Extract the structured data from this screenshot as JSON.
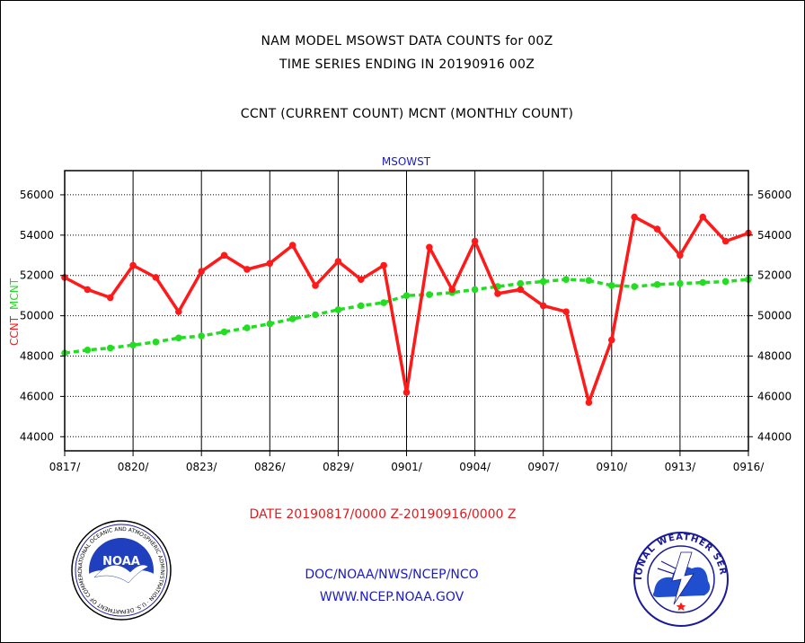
{
  "header": {
    "line1": "NAM MODEL MSOWST DATA COUNTS for 00Z",
    "line2": "TIME SERIES ENDING IN 20190916 00Z",
    "line3": "CCNT (CURRENT COUNT) MCNT (MONTHLY COUNT)"
  },
  "footer": {
    "date_range": "DATE 20190817/0000 Z-20190916/0000 Z",
    "org_path": "DOC/NOAA/NWS/NCEP/NCO",
    "website": "WWW.NCEP.NOAA.GOV"
  },
  "logos": {
    "noaa_text": "NOAA",
    "noaa_ring": "NATIONAL OCEANIC AND ATMOSPHERIC ADMINISTRATION · U.S. DEPARTMENT OF COMMERCE",
    "nws_ring": "NATIONAL WEATHER SERVICE"
  },
  "colors": {
    "ccnt": "#ff1a1a",
    "mcnt": "#22dd22",
    "title_blue": "#1a1acc",
    "footer_red": "#e31a1c"
  },
  "chart_data": {
    "type": "line",
    "title": "MSOWST",
    "ylabel_parts": [
      {
        "text": "CCNT",
        "color": "#ff1a1a"
      },
      {
        "text": "MCNT",
        "color": "#22dd22"
      }
    ],
    "xlabel": "",
    "ylim": [
      43300,
      57200
    ],
    "yticks": [
      44000,
      46000,
      48000,
      50000,
      52000,
      54000,
      56000
    ],
    "ytick_labels": [
      "44000",
      "46000",
      "48000",
      "50000",
      "52000",
      "54000",
      "56000"
    ],
    "x": [
      "0817",
      "0818",
      "0819",
      "0820",
      "0821",
      "0822",
      "0823",
      "0824",
      "0825",
      "0826",
      "0827",
      "0828",
      "0829",
      "0830",
      "0831",
      "0901",
      "0902",
      "0903",
      "0904",
      "0905",
      "0906",
      "0907",
      "0908",
      "0909",
      "0910",
      "0911",
      "0912",
      "0913",
      "0914",
      "0915",
      "0916"
    ],
    "xtick_labels": [
      "0817/",
      "0820/",
      "0823/",
      "0826/",
      "0829/",
      "0901/",
      "0904/",
      "0907/",
      "0910/",
      "0913/",
      "0916/"
    ],
    "grid": true,
    "series": [
      {
        "name": "CCNT",
        "color": "#ff1a1a",
        "style": "solid",
        "values": [
          51900,
          51300,
          50900,
          52500,
          51900,
          50200,
          52200,
          53000,
          52300,
          52600,
          53500,
          51500,
          52700,
          51800,
          52500,
          46200,
          53400,
          51300,
          53700,
          51100,
          51300,
          50500,
          50200,
          45700,
          48800,
          54900,
          54300,
          53000,
          54900,
          53700,
          54100
        ]
      },
      {
        "name": "MCNT",
        "color": "#22dd22",
        "style": "dashed",
        "values": [
          48150,
          48300,
          48400,
          48550,
          48700,
          48900,
          49000,
          49200,
          49400,
          49600,
          49850,
          50050,
          50300,
          50500,
          50650,
          51000,
          51050,
          51150,
          51300,
          51450,
          51600,
          51700,
          51800,
          51750,
          51500,
          51450,
          51550,
          51600,
          51650,
          51700,
          51800
        ]
      }
    ]
  }
}
